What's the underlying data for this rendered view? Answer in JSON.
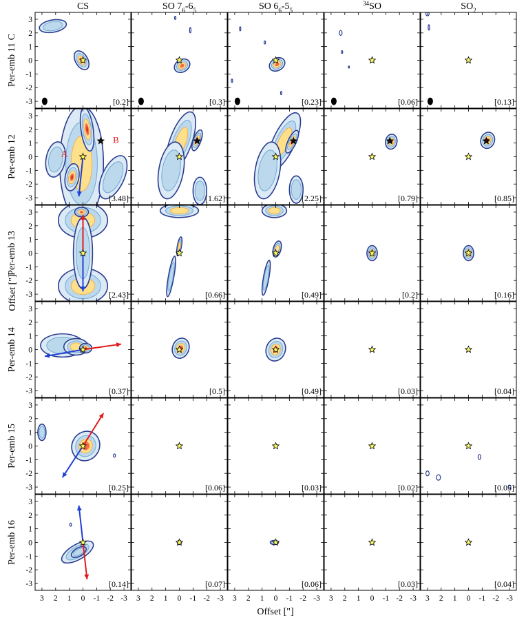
{
  "figure": {
    "columns": [
      {
        "name": "CS",
        "html": "CS"
      },
      {
        "name": "SO 7_6-6_5",
        "html": "SO 7<tspan baseline-shift=\"sub\" font-size=\"9\">6</tspan>-6<tspan baseline-shift=\"sub\" font-size=\"9\">5</tspan>"
      },
      {
        "name": "SO 6_6-5_5",
        "html": "SO 6<tspan baseline-shift=\"sub\" font-size=\"9\">6</tspan>-5<tspan baseline-shift=\"sub\" font-size=\"9\">5</tspan>"
      },
      {
        "name": "34SO",
        "html": "<tspan baseline-shift=\"super\" font-size=\"9\">34</tspan>SO"
      },
      {
        "name": "SO2",
        "html": "SO<tspan baseline-shift=\"sub\" font-size=\"9\">2</tspan>"
      }
    ],
    "rows": [
      "Per-emb 11 C",
      "Per-emb 12",
      "Per-emb 13",
      "Per-emb 14",
      "Per-emb 15",
      "Per-emb 16"
    ],
    "peak_values": [
      [
        "[0.2]",
        "[0.3]",
        "[0.23]",
        "[0.06]",
        "[0.13]"
      ],
      [
        "[3.48]",
        "[1.62]",
        "[2.25]",
        "[0.79]",
        "[0.85]"
      ],
      [
        "[2.43]",
        "[0.66]",
        "[0.49]",
        "[0.2]",
        "[0.16]"
      ],
      [
        "[0.37]",
        "[0.5]",
        "[0.49]",
        "[0.03]",
        "[0.04]"
      ],
      [
        "[0.25]",
        "[0.06]",
        "[0.03]",
        "[0.02]",
        "[0.05]"
      ],
      [
        "[0.14]",
        "[0.07]",
        "[0.06]",
        "[0.03]",
        "[0.04]"
      ]
    ],
    "x_ticks": [
      "3",
      "2",
      "1",
      "0",
      "-1",
      "-2",
      "-3"
    ],
    "y_ticks": [
      "3",
      "2",
      "1",
      "0",
      "-1",
      "-2",
      "-3"
    ],
    "xlabel": "Offset [\"]",
    "ylabel": "Offset [\"]",
    "source_labels": {
      "a": "A",
      "b": "B"
    },
    "colors": {
      "contour_outer": "#2b3d91",
      "contour_mid": "#6fa8d6",
      "fill_low": "#dbeaf4",
      "fill_mid": "#fee08b",
      "fill_high": "#d73027",
      "outflow_red": "#e41a1c",
      "outflow_blue": "#1f3fd6",
      "star_yellow": "#ffff66"
    }
  },
  "chart_data": {
    "type": "contour-map-grid",
    "rows": [
      "Per-emb 11 C",
      "Per-emb 12",
      "Per-emb 13",
      "Per-emb 14",
      "Per-emb 15",
      "Per-emb 16"
    ],
    "columns": [
      "CS",
      "SO 7_6-6_5",
      "SO 6_6-5_5",
      "34SO",
      "SO2"
    ],
    "xlabel": "Offset [\"]",
    "ylabel": "Offset [\"]",
    "xlim": [
      3.5,
      -3.5
    ],
    "ylim": [
      -3.5,
      3.5
    ],
    "peak_intensity": [
      [
        0.2,
        0.3,
        0.23,
        0.06,
        0.13
      ],
      [
        3.48,
        1.62,
        2.25,
        0.79,
        0.85
      ],
      [
        2.43,
        0.66,
        0.49,
        0.2,
        0.16
      ],
      [
        0.37,
        0.5,
        0.49,
        0.03,
        0.04
      ],
      [
        0.25,
        0.06,
        0.03,
        0.02,
        0.05
      ],
      [
        0.14,
        0.07,
        0.06,
        0.03,
        0.04
      ]
    ]
  }
}
